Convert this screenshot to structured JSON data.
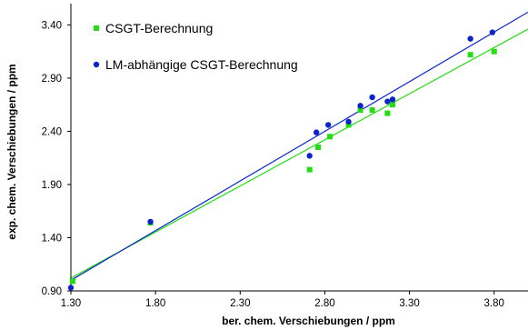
{
  "chart_data": {
    "type": "scatter",
    "xlabel": "ber. chem. Verschiebungen / ppm",
    "ylabel": "exp. chem. Verschiebungen / ppm",
    "xlim": [
      1.3,
      4.0
    ],
    "ylim": [
      0.9,
      3.6
    ],
    "xticks": [
      1.3,
      1.8,
      2.3,
      2.8,
      3.3,
      3.8
    ],
    "yticks": [
      0.9,
      1.4,
      1.9,
      2.4,
      2.9,
      3.4
    ],
    "xtick_labels": [
      "1.30",
      "1.80",
      "2.30",
      "2.80",
      "3.30",
      "3.80"
    ],
    "ytick_labels": [
      "0.90",
      "1.40",
      "1.90",
      "2.40",
      "2.90",
      "3.40"
    ],
    "legend_position": "top-left",
    "grid": false,
    "series": [
      {
        "name": "CSGT-Berechnung",
        "marker": "square",
        "color": "#22dd11",
        "points": [
          [
            1.31,
            0.99
          ],
          [
            1.77,
            1.54
          ],
          [
            2.71,
            2.04
          ],
          [
            2.76,
            2.25
          ],
          [
            2.83,
            2.35
          ],
          [
            2.94,
            2.46
          ],
          [
            3.01,
            2.6
          ],
          [
            3.08,
            2.6
          ],
          [
            3.17,
            2.57
          ],
          [
            3.2,
            2.65
          ],
          [
            3.66,
            3.12
          ],
          [
            3.8,
            3.15
          ]
        ],
        "fit": [
          [
            1.3,
            1.02
          ],
          [
            4.0,
            3.36
          ]
        ]
      },
      {
        "name": "LM-abhängige CSGT-Berechnung",
        "marker": "circle",
        "color": "#0a24cc",
        "points": [
          [
            1.3,
            0.93
          ],
          [
            1.77,
            1.55
          ],
          [
            2.71,
            2.17
          ],
          [
            2.75,
            2.39
          ],
          [
            2.82,
            2.46
          ],
          [
            2.94,
            2.49
          ],
          [
            3.01,
            2.64
          ],
          [
            3.08,
            2.72
          ],
          [
            3.17,
            2.68
          ],
          [
            3.2,
            2.7
          ],
          [
            3.66,
            3.27
          ],
          [
            3.79,
            3.33
          ]
        ],
        "fit": [
          [
            1.3,
            1.0
          ],
          [
            4.0,
            3.52
          ]
        ]
      }
    ]
  }
}
